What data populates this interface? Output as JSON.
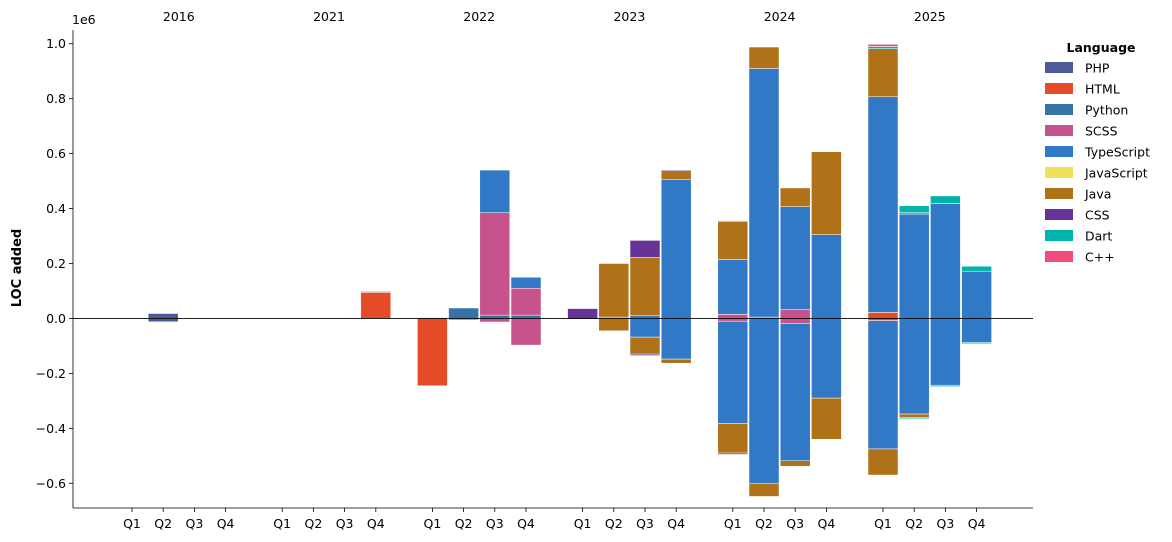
{
  "chart_data": {
    "type": "bar",
    "stacked": true,
    "diverging": true,
    "title": "",
    "xlabel": "",
    "ylabel": "LOC added",
    "y_multiplier_label": "1e6",
    "ylim": [
      -0.69,
      1.05
    ],
    "yticks": [
      -0.6,
      -0.4,
      -0.2,
      0.0,
      0.2,
      0.4,
      0.6,
      0.8,
      1.0
    ],
    "ytick_labels": [
      "−0.6",
      "−0.4",
      "−0.2",
      "0.0",
      "0.2",
      "0.4",
      "0.6",
      "0.8",
      "1.0"
    ],
    "year_groups": [
      "2016",
      "2021",
      "2022",
      "2023",
      "2024",
      "2025"
    ],
    "quarters": [
      "Q1",
      "Q2",
      "Q3",
      "Q4"
    ],
    "legend": {
      "title": "Language",
      "position": "upper-right-outside",
      "entries": [
        {
          "name": "PHP",
          "color": "#4e5a96"
        },
        {
          "name": "HTML",
          "color": "#e34c26"
        },
        {
          "name": "Python",
          "color": "#3572a5"
        },
        {
          "name": "SCSS",
          "color": "#c6538c"
        },
        {
          "name": "TypeScript",
          "color": "#3178c6"
        },
        {
          "name": "JavaScript",
          "color": "#f1e05a"
        },
        {
          "name": "Java",
          "color": "#b07219"
        },
        {
          "name": "CSS",
          "color": "#663399"
        },
        {
          "name": "Dart",
          "color": "#00b4ab"
        },
        {
          "name": "C++",
          "color": "#f34b7d"
        }
      ]
    },
    "bars": [
      {
        "year": "2016",
        "quarter": "Q2",
        "positive": [
          {
            "lang": "PHP",
            "value": 0.018
          }
        ],
        "negative": [
          {
            "lang": "PHP",
            "value": -0.012
          }
        ]
      },
      {
        "year": "2021",
        "quarter": "Q4",
        "positive": [
          {
            "lang": "HTML",
            "value": 0.095
          },
          {
            "lang": "Python",
            "value": 0.003
          }
        ],
        "negative": []
      },
      {
        "year": "2022",
        "quarter": "Q1",
        "positive": [
          {
            "lang": "Python",
            "value": 0.003
          }
        ],
        "negative": [
          {
            "lang": "HTML",
            "value": -0.245
          }
        ]
      },
      {
        "year": "2022",
        "quarter": "Q2",
        "positive": [
          {
            "lang": "Python",
            "value": 0.038
          }
        ],
        "negative": [
          {
            "lang": "Python",
            "value": -0.005
          }
        ]
      },
      {
        "year": "2022",
        "quarter": "Q3",
        "positive": [
          {
            "lang": "Python",
            "value": 0.012
          },
          {
            "lang": "SCSS",
            "value": 0.373
          },
          {
            "lang": "TypeScript",
            "value": 0.155
          }
        ],
        "negative": [
          {
            "lang": "SCSS",
            "value": -0.013
          }
        ]
      },
      {
        "year": "2022",
        "quarter": "Q4",
        "positive": [
          {
            "lang": "Python",
            "value": 0.012
          },
          {
            "lang": "SCSS",
            "value": 0.098
          },
          {
            "lang": "TypeScript",
            "value": 0.04
          }
        ],
        "negative": [
          {
            "lang": "SCSS",
            "value": -0.097
          }
        ]
      },
      {
        "year": "2023",
        "quarter": "Q1",
        "positive": [
          {
            "lang": "CSS",
            "value": 0.036
          }
        ],
        "negative": [
          {
            "lang": "CSS",
            "value": -0.003
          }
        ]
      },
      {
        "year": "2023",
        "quarter": "Q2",
        "positive": [
          {
            "lang": "SCSS",
            "value": 0.005
          },
          {
            "lang": "Java",
            "value": 0.195
          }
        ],
        "negative": [
          {
            "lang": "Java",
            "value": -0.045
          }
        ]
      },
      {
        "year": "2023",
        "quarter": "Q3",
        "positive": [
          {
            "lang": "TypeScript",
            "value": 0.01
          },
          {
            "lang": "Java",
            "value": 0.212
          },
          {
            "lang": "CSS",
            "value": 0.062
          }
        ],
        "negative": [
          {
            "lang": "TypeScript",
            "value": -0.068
          },
          {
            "lang": "Java",
            "value": -0.062
          },
          {
            "lang": "CSS",
            "value": -0.005
          }
        ]
      },
      {
        "year": "2023",
        "quarter": "Q4",
        "positive": [
          {
            "lang": "TypeScript",
            "value": 0.505
          },
          {
            "lang": "Java",
            "value": 0.033
          },
          {
            "lang": "CSS",
            "value": 0.003
          }
        ],
        "negative": [
          {
            "lang": "TypeScript",
            "value": -0.148
          },
          {
            "lang": "Java",
            "value": -0.015
          }
        ]
      },
      {
        "year": "2024",
        "quarter": "Q1",
        "positive": [
          {
            "lang": "SCSS",
            "value": 0.015
          },
          {
            "lang": "TypeScript",
            "value": 0.2
          },
          {
            "lang": "Java",
            "value": 0.138
          },
          {
            "lang": "CSS",
            "value": 0.003
          }
        ],
        "negative": [
          {
            "lang": "SCSS",
            "value": -0.01
          },
          {
            "lang": "TypeScript",
            "value": -0.373
          },
          {
            "lang": "Java",
            "value": -0.107
          },
          {
            "lang": "CSS",
            "value": -0.005
          }
        ]
      },
      {
        "year": "2024",
        "quarter": "Q2",
        "positive": [
          {
            "lang": "HTML",
            "value": 0.005
          },
          {
            "lang": "TypeScript",
            "value": 0.905
          },
          {
            "lang": "Java",
            "value": 0.078
          }
        ],
        "negative": [
          {
            "lang": "TypeScript",
            "value": -0.6
          },
          {
            "lang": "Java",
            "value": -0.048
          }
        ]
      },
      {
        "year": "2024",
        "quarter": "Q3",
        "positive": [
          {
            "lang": "SCSS",
            "value": 0.032
          },
          {
            "lang": "TypeScript",
            "value": 0.375
          },
          {
            "lang": "Java",
            "value": 0.068
          }
        ],
        "negative": [
          {
            "lang": "SCSS",
            "value": -0.018
          },
          {
            "lang": "TypeScript",
            "value": -0.5
          },
          {
            "lang": "Java",
            "value": -0.02
          }
        ]
      },
      {
        "year": "2024",
        "quarter": "Q4",
        "positive": [
          {
            "lang": "TypeScript",
            "value": 0.305
          },
          {
            "lang": "Java",
            "value": 0.302
          }
        ],
        "negative": [
          {
            "lang": "TypeScript",
            "value": -0.29
          },
          {
            "lang": "Java",
            "value": -0.15
          }
        ]
      },
      {
        "year": "2025",
        "quarter": "Q1",
        "positive": [
          {
            "lang": "HTML",
            "value": 0.022
          },
          {
            "lang": "TypeScript",
            "value": 0.785
          },
          {
            "lang": "Java",
            "value": 0.175
          },
          {
            "lang": "Dart",
            "value": 0.008
          },
          {
            "lang": "C++",
            "value": 0.008
          }
        ],
        "negative": [
          {
            "lang": "HTML",
            "value": -0.008
          },
          {
            "lang": "TypeScript",
            "value": -0.467
          },
          {
            "lang": "Java",
            "value": -0.095
          }
        ]
      },
      {
        "year": "2025",
        "quarter": "Q2",
        "positive": [
          {
            "lang": "TypeScript",
            "value": 0.38
          },
          {
            "lang": "Java",
            "value": 0.005
          },
          {
            "lang": "Dart",
            "value": 0.025
          }
        ],
        "negative": [
          {
            "lang": "TypeScript",
            "value": -0.348
          },
          {
            "lang": "Java",
            "value": -0.012
          },
          {
            "lang": "Dart",
            "value": -0.005
          }
        ]
      },
      {
        "year": "2025",
        "quarter": "Q3",
        "positive": [
          {
            "lang": "TypeScript",
            "value": 0.418
          },
          {
            "lang": "Dart",
            "value": 0.028
          }
        ],
        "negative": [
          {
            "lang": "TypeScript",
            "value": -0.243
          },
          {
            "lang": "Dart",
            "value": -0.005
          }
        ]
      },
      {
        "year": "2025",
        "quarter": "Q4",
        "positive": [
          {
            "lang": "TypeScript",
            "value": 0.172
          },
          {
            "lang": "Dart",
            "value": 0.018
          }
        ],
        "negative": [
          {
            "lang": "TypeScript",
            "value": -0.087
          },
          {
            "lang": "Dart",
            "value": -0.005
          }
        ]
      }
    ]
  }
}
